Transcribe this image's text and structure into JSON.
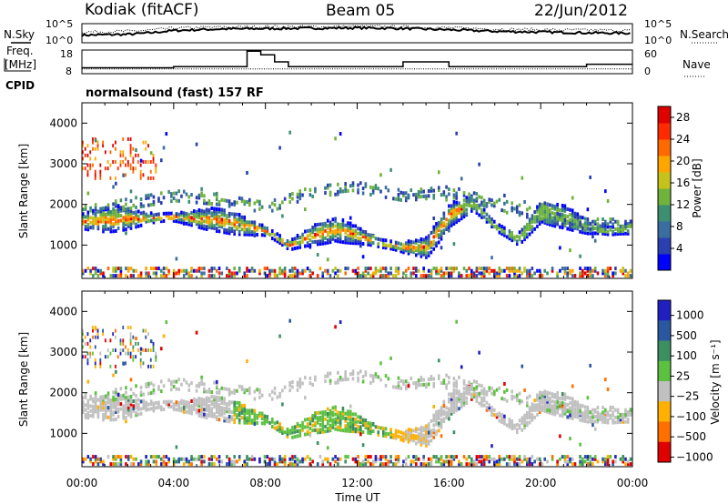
{
  "header": {
    "station": "Kodiak (fitACF)",
    "beam": "Beam 05",
    "date": "22/Jun/2012"
  },
  "left_labels": {
    "nsky": "N.Sky",
    "freq_line1": "Freq.",
    "freq_line2": "[MHz]",
    "cpid": "CPID"
  },
  "right_labels": {
    "nsearch": "N.Search",
    "nave": "Nave"
  },
  "cpid_text": "normalsound (fast) 157 RF",
  "noise_panel": {
    "ytick_left": [
      "10^5",
      "10^0"
    ],
    "ytick_right": [
      "10^5",
      "10^0"
    ]
  },
  "freq_panel": {
    "ytick_left": [
      "18",
      "8"
    ],
    "ytick_right": [
      "60",
      "0"
    ]
  },
  "chart_data": [
    {
      "type": "line",
      "name": "noise",
      "x": [
        0,
        2,
        3,
        4,
        6,
        8,
        10,
        12,
        13.5,
        16,
        18,
        20,
        22,
        24
      ],
      "series": [
        {
          "name": "N.Sky",
          "values": [
            2.0,
            2.2,
            2.6,
            3.2,
            3.6,
            3.7,
            3.8,
            3.9,
            3.8,
            3.4,
            3.0,
            2.8,
            2.6,
            2.5
          ]
        },
        {
          "name": "N.Search",
          "values": [
            2.8,
            3.0,
            3.3,
            3.8,
            4.1,
            4.2,
            4.2,
            4.3,
            4.2,
            3.9,
            3.6,
            3.4,
            3.3,
            3.2
          ]
        }
      ],
      "ylim": [
        0,
        5
      ]
    },
    {
      "type": "line",
      "name": "frequency",
      "x": [
        0,
        3,
        4,
        6,
        7,
        7.2,
        7.8,
        8.4,
        9,
        10,
        13.5,
        14,
        16,
        18,
        20,
        22,
        24
      ],
      "series": [
        {
          "name": "Freq",
          "values": [
            10.5,
            10.5,
            11,
            11,
            11,
            17.5,
            16,
            13,
            11,
            11,
            11,
            13,
            11,
            11,
            11,
            12,
            11
          ]
        },
        {
          "name": "Nave",
          "values": [
            12,
            12,
            12,
            12,
            12,
            12,
            12,
            12,
            12,
            12,
            12,
            12,
            12,
            12,
            12,
            12,
            12
          ]
        }
      ],
      "ylim_left": [
        8,
        18
      ],
      "ylim_right": [
        0,
        60
      ]
    },
    {
      "type": "heatmap",
      "name": "power",
      "xlabel": "",
      "ylabel": "Slant Range [km]",
      "xlim": [
        0,
        24
      ],
      "ylim": [
        180,
        4500
      ],
      "yticks": [
        "1000",
        "2000",
        "3000",
        "4000"
      ],
      "colorbar_label": "Power [dB]",
      "colorbar_ticks": [
        "28",
        "24",
        "20",
        "16",
        "12",
        "8",
        "4"
      ],
      "colorbar_range": [
        0,
        30
      ],
      "colors": [
        "#0000ff",
        "#2a3fb0",
        "#3a6ea0",
        "#3c8f70",
        "#6fb23c",
        "#c6c21c",
        "#ffa500",
        "#ff6a00",
        "#ff2a00",
        "#e00000"
      ],
      "bands": [
        {
          "x": [
            0,
            2,
            4,
            6,
            8,
            9,
            10,
            11,
            12,
            13,
            14,
            15,
            16,
            17,
            18,
            19,
            20,
            21,
            22,
            23,
            24
          ],
          "y": [
            1550,
            1600,
            1650,
            1580,
            1300,
            950,
            1200,
            1350,
            1200,
            1000,
            900,
            900,
            1700,
            2000,
            1400,
            1100,
            1800,
            1650,
            1400,
            1300,
            1400
          ],
          "level": 20
        },
        {
          "x": [
            0,
            2,
            4,
            6,
            8,
            10,
            12,
            14,
            16,
            18,
            20,
            22,
            24
          ],
          "y": [
            1800,
            2000,
            2200,
            2100,
            1900,
            2300,
            2400,
            2200,
            2300,
            2000,
            1700,
            1500,
            1500
          ],
          "level": 8
        }
      ]
    },
    {
      "type": "heatmap",
      "name": "velocity",
      "xlabel": "Time UT",
      "ylabel": "Slant Range [km]",
      "xlim": [
        0,
        24
      ],
      "ylim": [
        180,
        4500
      ],
      "xticks": [
        "00:00",
        "04:00",
        "08:00",
        "12:00",
        "16:00",
        "20:00",
        "00:00"
      ],
      "yticks": [
        "1000",
        "2000",
        "3000",
        "4000"
      ],
      "colorbar_label": "Velocity [m s⁻¹]",
      "colorbar_ticks": [
        "1000",
        "500",
        "100",
        "25",
        "−25",
        "−100",
        "−500",
        "−1000"
      ],
      "colors": [
        "#2020c0",
        "#2a58a0",
        "#3c8f60",
        "#5cc040",
        "#c0c0c0",
        "#ffb000",
        "#ff7000",
        "#e00000"
      ],
      "regions": [
        {
          "x0": 6.5,
          "x1": 13.5,
          "y0": 800,
          "y1": 1700,
          "class": "100"
        },
        {
          "x0": 0,
          "x1": 6.5,
          "y0": 1100,
          "y1": 1900,
          "class": "25"
        },
        {
          "x0": 13.5,
          "x1": 24,
          "y0": 1100,
          "y1": 2100,
          "class": "25"
        }
      ]
    }
  ]
}
